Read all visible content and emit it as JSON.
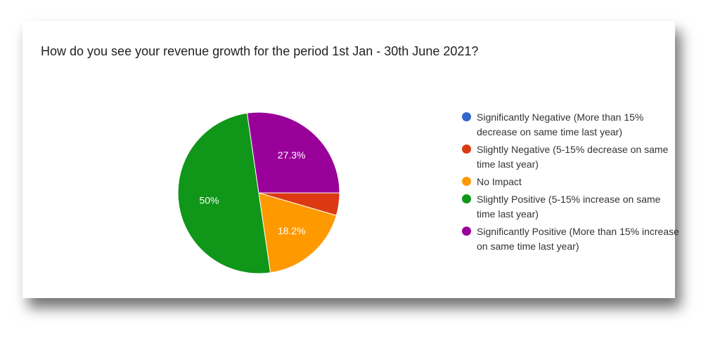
{
  "chart_data": {
    "type": "pie",
    "title": "How do you see your revenue growth for the period 1st Jan - 30th June 2021?",
    "legend_position": "right",
    "start_angle_deg": 90,
    "slices": [
      {
        "label": "Significantly Negative (More than 15% decrease on same time last year)",
        "value": 0,
        "data_label": "",
        "color": "#3366cc"
      },
      {
        "label": "Slightly Negative (5-15% decrease on same time last year)",
        "value": 4.5,
        "data_label": "",
        "color": "#dc3912"
      },
      {
        "label": "No Impact",
        "value": 18.2,
        "data_label": "18.2%",
        "color": "#ff9900"
      },
      {
        "label": "Slightly Positive (5-15% increase on same time last year)",
        "value": 50,
        "data_label": "50%",
        "color": "#109618"
      },
      {
        "label": "Significantly Positive (More than 15% increase on same time last year)",
        "value": 27.3,
        "data_label": "27.3%",
        "color": "#990099"
      }
    ]
  }
}
